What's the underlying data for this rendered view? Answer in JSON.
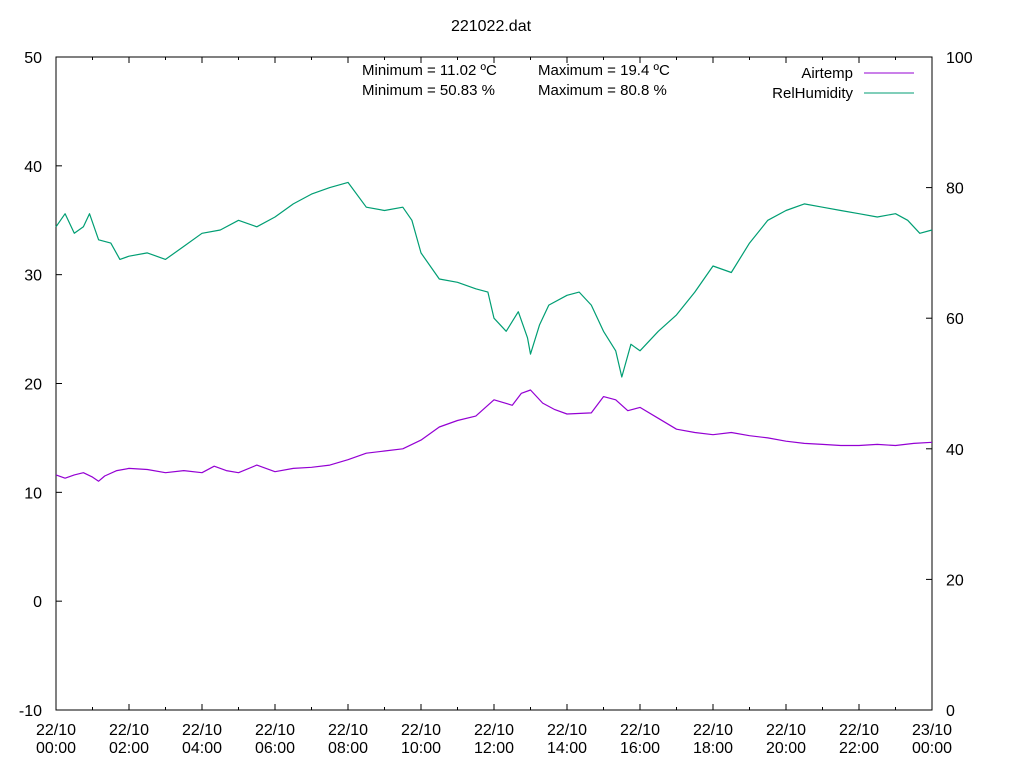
{
  "chart_data": {
    "type": "line",
    "title": "221022.dat",
    "x_axis": {
      "range": [
        "2022-10-22T00:00",
        "2022-10-23T00:00"
      ],
      "ticks": [
        {
          "value": "2022-10-22T00:00",
          "label_date": "22/10",
          "label_time": "00:00"
        },
        {
          "value": "2022-10-22T02:00",
          "label_date": "22/10",
          "label_time": "02:00"
        },
        {
          "value": "2022-10-22T04:00",
          "label_date": "22/10",
          "label_time": "04:00"
        },
        {
          "value": "2022-10-22T06:00",
          "label_date": "22/10",
          "label_time": "06:00"
        },
        {
          "value": "2022-10-22T08:00",
          "label_date": "22/10",
          "label_time": "08:00"
        },
        {
          "value": "2022-10-22T10:00",
          "label_date": "22/10",
          "label_time": "10:00"
        },
        {
          "value": "2022-10-22T12:00",
          "label_date": "22/10",
          "label_time": "12:00"
        },
        {
          "value": "2022-10-22T14:00",
          "label_date": "22/10",
          "label_time": "14:00"
        },
        {
          "value": "2022-10-22T16:00",
          "label_date": "22/10",
          "label_time": "16:00"
        },
        {
          "value": "2022-10-22T18:00",
          "label_date": "22/10",
          "label_time": "18:00"
        },
        {
          "value": "2022-10-22T20:00",
          "label_date": "22/10",
          "label_time": "20:00"
        },
        {
          "value": "2022-10-22T22:00",
          "label_date": "22/10",
          "label_time": "22:00"
        },
        {
          "value": "2022-10-23T00:00",
          "label_date": "23/10",
          "label_time": "00:00"
        }
      ]
    },
    "y_left": {
      "range": [
        -10,
        50
      ],
      "ticks": [
        "-10",
        "0",
        "10",
        "20",
        "30",
        "40",
        "50"
      ]
    },
    "y_right": {
      "range": [
        0,
        100
      ],
      "ticks": [
        "0",
        "20",
        "40",
        "60",
        "80",
        "100"
      ]
    },
    "grid": false,
    "legend_position": "top-right",
    "annotations": [
      {
        "text": "Minimum = 11.02 ºC"
      },
      {
        "text": "Maximum = 19.4 ºC"
      },
      {
        "text": "Minimum = 50.83 %"
      },
      {
        "text": "Maximum = 80.8 %"
      }
    ],
    "series": [
      {
        "name": "Airtemp",
        "axis": "left",
        "color": "#9400d3",
        "points": [
          [
            "2022-10-22T00:00",
            11.6
          ],
          [
            "2022-10-22T00:15",
            11.3
          ],
          [
            "2022-10-22T00:30",
            11.6
          ],
          [
            "2022-10-22T00:45",
            11.8
          ],
          [
            "2022-10-22T01:00",
            11.4
          ],
          [
            "2022-10-22T01:10",
            11.02
          ],
          [
            "2022-10-22T01:20",
            11.5
          ],
          [
            "2022-10-22T01:40",
            12.0
          ],
          [
            "2022-10-22T02:00",
            12.2
          ],
          [
            "2022-10-22T02:30",
            12.1
          ],
          [
            "2022-10-22T03:00",
            11.8
          ],
          [
            "2022-10-22T03:30",
            12.0
          ],
          [
            "2022-10-22T04:00",
            11.8
          ],
          [
            "2022-10-22T04:20",
            12.4
          ],
          [
            "2022-10-22T04:40",
            12.0
          ],
          [
            "2022-10-22T05:00",
            11.8
          ],
          [
            "2022-10-22T05:30",
            12.5
          ],
          [
            "2022-10-22T06:00",
            11.9
          ],
          [
            "2022-10-22T06:30",
            12.2
          ],
          [
            "2022-10-22T07:00",
            12.3
          ],
          [
            "2022-10-22T07:30",
            12.5
          ],
          [
            "2022-10-22T08:00",
            13.0
          ],
          [
            "2022-10-22T08:30",
            13.6
          ],
          [
            "2022-10-22T09:00",
            13.8
          ],
          [
            "2022-10-22T09:30",
            14.0
          ],
          [
            "2022-10-22T10:00",
            14.8
          ],
          [
            "2022-10-22T10:30",
            16.0
          ],
          [
            "2022-10-22T11:00",
            16.6
          ],
          [
            "2022-10-22T11:30",
            17.0
          ],
          [
            "2022-10-22T12:00",
            18.5
          ],
          [
            "2022-10-22T12:30",
            18.0
          ],
          [
            "2022-10-22T12:45",
            19.1
          ],
          [
            "2022-10-22T13:00",
            19.4
          ],
          [
            "2022-10-22T13:20",
            18.2
          ],
          [
            "2022-10-22T13:40",
            17.6
          ],
          [
            "2022-10-22T14:00",
            17.2
          ],
          [
            "2022-10-22T14:40",
            17.3
          ],
          [
            "2022-10-22T15:00",
            18.8
          ],
          [
            "2022-10-22T15:20",
            18.5
          ],
          [
            "2022-10-22T15:40",
            17.5
          ],
          [
            "2022-10-22T16:00",
            17.8
          ],
          [
            "2022-10-22T16:30",
            16.8
          ],
          [
            "2022-10-22T17:00",
            15.8
          ],
          [
            "2022-10-22T17:30",
            15.5
          ],
          [
            "2022-10-22T18:00",
            15.3
          ],
          [
            "2022-10-22T18:30",
            15.5
          ],
          [
            "2022-10-22T19:00",
            15.2
          ],
          [
            "2022-10-22T19:30",
            15.0
          ],
          [
            "2022-10-22T20:00",
            14.7
          ],
          [
            "2022-10-22T20:30",
            14.5
          ],
          [
            "2022-10-22T21:00",
            14.4
          ],
          [
            "2022-10-22T21:30",
            14.3
          ],
          [
            "2022-10-22T22:00",
            14.3
          ],
          [
            "2022-10-22T22:30",
            14.4
          ],
          [
            "2022-10-22T23:00",
            14.3
          ],
          [
            "2022-10-22T23:30",
            14.5
          ],
          [
            "2022-10-23T00:00",
            14.6
          ]
        ]
      },
      {
        "name": "RelHumidity",
        "axis": "right",
        "color": "#009e73",
        "points": [
          [
            "2022-10-22T00:00",
            74.0
          ],
          [
            "2022-10-22T00:15",
            76.0
          ],
          [
            "2022-10-22T00:30",
            73.0
          ],
          [
            "2022-10-22T00:45",
            74.0
          ],
          [
            "2022-10-22T00:55",
            76.0
          ],
          [
            "2022-10-22T01:10",
            72.0
          ],
          [
            "2022-10-22T01:30",
            71.5
          ],
          [
            "2022-10-22T01:45",
            69.0
          ],
          [
            "2022-10-22T02:00",
            69.5
          ],
          [
            "2022-10-22T02:30",
            70.0
          ],
          [
            "2022-10-22T03:00",
            69.0
          ],
          [
            "2022-10-22T03:30",
            71.0
          ],
          [
            "2022-10-22T04:00",
            73.0
          ],
          [
            "2022-10-22T04:30",
            73.5
          ],
          [
            "2022-10-22T05:00",
            75.0
          ],
          [
            "2022-10-22T05:30",
            74.0
          ],
          [
            "2022-10-22T06:00",
            75.5
          ],
          [
            "2022-10-22T06:30",
            77.5
          ],
          [
            "2022-10-22T07:00",
            79.0
          ],
          [
            "2022-10-22T07:30",
            80.0
          ],
          [
            "2022-10-22T08:00",
            80.8
          ],
          [
            "2022-10-22T08:30",
            77.0
          ],
          [
            "2022-10-22T09:00",
            76.5
          ],
          [
            "2022-10-22T09:30",
            77.0
          ],
          [
            "2022-10-22T09:45",
            75.0
          ],
          [
            "2022-10-22T10:00",
            70.0
          ],
          [
            "2022-10-22T10:30",
            66.0
          ],
          [
            "2022-10-22T11:00",
            65.5
          ],
          [
            "2022-10-22T11:30",
            64.5
          ],
          [
            "2022-10-22T11:50",
            64.0
          ],
          [
            "2022-10-22T12:00",
            60.0
          ],
          [
            "2022-10-22T12:20",
            58.0
          ],
          [
            "2022-10-22T12:40",
            61.0
          ],
          [
            "2022-10-22T12:55",
            57.0
          ],
          [
            "2022-10-22T13:00",
            54.5
          ],
          [
            "2022-10-22T13:15",
            59.0
          ],
          [
            "2022-10-22T13:30",
            62.0
          ],
          [
            "2022-10-22T14:00",
            63.5
          ],
          [
            "2022-10-22T14:20",
            64.0
          ],
          [
            "2022-10-22T14:40",
            62.0
          ],
          [
            "2022-10-22T15:00",
            58.0
          ],
          [
            "2022-10-22T15:20",
            55.0
          ],
          [
            "2022-10-22T15:30",
            51.0
          ],
          [
            "2022-10-22T15:45",
            56.0
          ],
          [
            "2022-10-22T16:00",
            55.0
          ],
          [
            "2022-10-22T16:30",
            58.0
          ],
          [
            "2022-10-22T17:00",
            60.5
          ],
          [
            "2022-10-22T17:30",
            64.0
          ],
          [
            "2022-10-22T18:00",
            68.0
          ],
          [
            "2022-10-22T18:30",
            67.0
          ],
          [
            "2022-10-22T19:00",
            71.5
          ],
          [
            "2022-10-22T19:30",
            75.0
          ],
          [
            "2022-10-22T20:00",
            76.5
          ],
          [
            "2022-10-22T20:30",
            77.5
          ],
          [
            "2022-10-22T21:00",
            77.0
          ],
          [
            "2022-10-22T21:30",
            76.5
          ],
          [
            "2022-10-22T22:00",
            76.0
          ],
          [
            "2022-10-22T22:30",
            75.5
          ],
          [
            "2022-10-22T23:00",
            76.0
          ],
          [
            "2022-10-22T23:20",
            75.0
          ],
          [
            "2022-10-22T23:40",
            73.0
          ],
          [
            "2022-10-23T00:00",
            73.5
          ]
        ]
      }
    ]
  }
}
